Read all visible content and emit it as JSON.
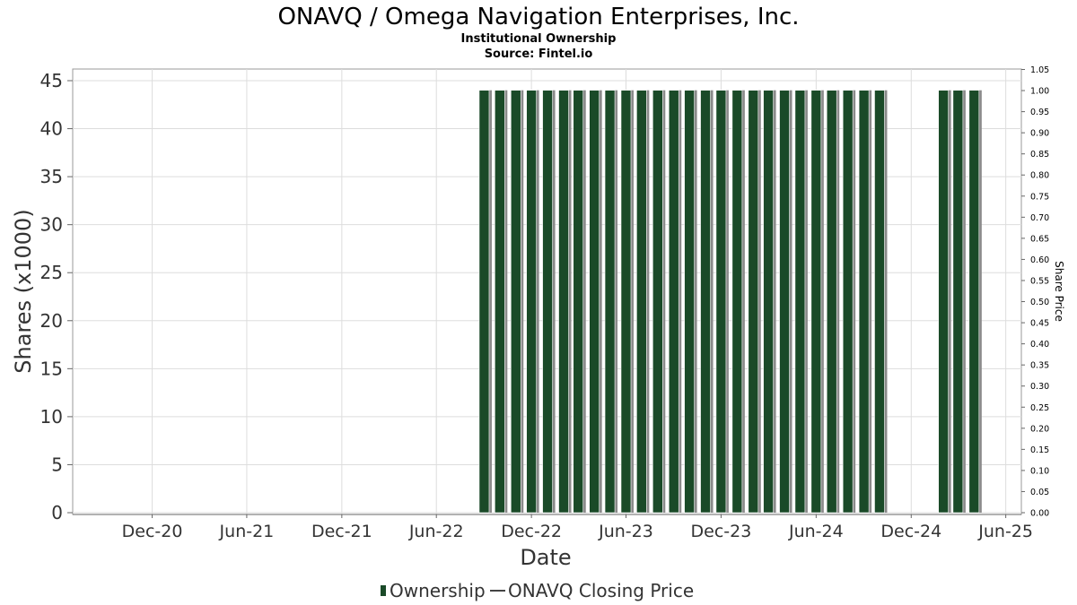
{
  "title": "ONAVQ / Omega Navigation Enterprises, Inc.",
  "subtitle": "Institutional Ownership",
  "source": "Source: Fintel.io",
  "legend": {
    "ownership": "Ownership",
    "price": "ONAVQ Closing Price"
  },
  "colors": {
    "bar": "#1a4a28",
    "bar_shadow": "#8a8a8a",
    "price_line": "#444444"
  },
  "chart_data": {
    "type": "bar",
    "title": "ONAVQ / Omega Navigation Enterprises, Inc.",
    "xlabel": "Date",
    "ylabel": "Shares (x1000)",
    "y2label": "Share Price",
    "ylim": [
      0,
      46
    ],
    "y2lim": [
      0,
      1.05
    ],
    "xlim": [
      "2020-07-01",
      "2025-07-01"
    ],
    "y_ticks": [
      0,
      5,
      10,
      15,
      20,
      25,
      30,
      35,
      40,
      45
    ],
    "y2_ticks": [
      "0.00",
      "0.05",
      "0.10",
      "0.15",
      "0.20",
      "0.25",
      "0.30",
      "0.35",
      "0.40",
      "0.45",
      "0.50",
      "0.55",
      "0.60",
      "0.65",
      "0.70",
      "0.75",
      "0.80",
      "0.85",
      "0.90",
      "0.95",
      "1.00",
      "1.05"
    ],
    "x_ticks": [
      {
        "label": "Dec-20",
        "date": "2020-12-01"
      },
      {
        "label": "Jun-21",
        "date": "2021-06-01"
      },
      {
        "label": "Dec-21",
        "date": "2021-12-01"
      },
      {
        "label": "Jun-22",
        "date": "2022-06-01"
      },
      {
        "label": "Dec-22",
        "date": "2022-12-01"
      },
      {
        "label": "Jun-23",
        "date": "2023-06-01"
      },
      {
        "label": "Dec-23",
        "date": "2023-12-01"
      },
      {
        "label": "Jun-24",
        "date": "2024-06-01"
      },
      {
        "label": "Dec-24",
        "date": "2024-12-01"
      },
      {
        "label": "Jun-25",
        "date": "2025-06-01"
      }
    ],
    "grid": true,
    "legend_position": "bottom",
    "series": [
      {
        "name": "Ownership",
        "x": [
          "2022-09-01",
          "2022-10-01",
          "2022-11-01",
          "2022-12-01",
          "2023-01-01",
          "2023-02-01",
          "2023-03-01",
          "2023-04-01",
          "2023-05-01",
          "2023-06-01",
          "2023-07-01",
          "2023-08-01",
          "2023-09-01",
          "2023-10-01",
          "2023-11-01",
          "2023-12-01",
          "2024-01-01",
          "2024-02-01",
          "2024-03-01",
          "2024-04-01",
          "2024-05-01",
          "2024-06-01",
          "2024-07-01",
          "2024-08-01",
          "2024-09-01",
          "2024-10-01",
          "2025-02-01",
          "2025-03-01",
          "2025-04-01"
        ],
        "values": [
          44,
          44,
          44,
          44,
          44,
          44,
          44,
          44,
          44,
          44,
          44,
          44,
          44,
          44,
          44,
          44,
          44,
          44,
          44,
          44,
          44,
          44,
          44,
          44,
          44,
          44,
          44,
          44,
          44
        ]
      },
      {
        "name": "ONAVQ Closing Price",
        "x": [],
        "values": []
      }
    ]
  }
}
